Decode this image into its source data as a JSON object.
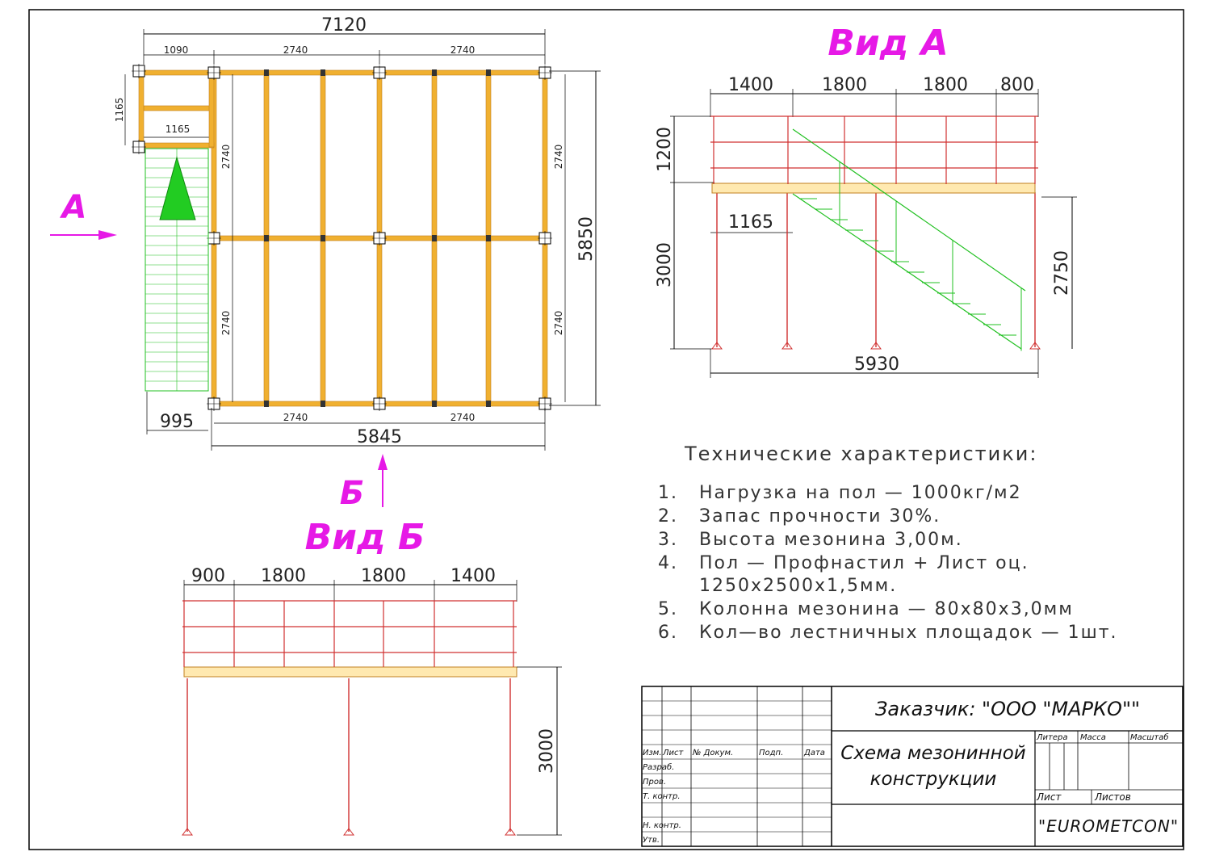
{
  "colors": {
    "frame": "#000000",
    "beam": "#f0b030",
    "beam_edge": "#c08020",
    "column": "#d03030",
    "stair": "#20c020",
    "accent": "#e619e6",
    "dim_line": "#000000"
  },
  "plan": {
    "dims_top": {
      "total": "7120",
      "d1": "1090",
      "d2": "2740",
      "d3": "2740"
    },
    "dims_left": {
      "d1": "1165",
      "inner": "1165"
    },
    "dims_inner": {
      "l1": "2740",
      "l2": "2740",
      "r1": "2740",
      "r2": "2740"
    },
    "dims_right": {
      "total": "5850"
    },
    "dims_bottom": {
      "b1": "2740",
      "b2": "2740",
      "total": "5845",
      "stair": "995"
    },
    "arrow_a": "A",
    "arrow_b": "Б"
  },
  "view_a": {
    "title": "Вид А",
    "dims_top": [
      "1400",
      "1800",
      "1800",
      "800"
    ],
    "rail_height": "1200",
    "height": "3000",
    "stair_offset": "1165",
    "stair_height": "2750",
    "width": "5930"
  },
  "view_b": {
    "title": "Вид Б",
    "dims_top": [
      "900",
      "1800",
      "1800",
      "1400"
    ],
    "height": "3000"
  },
  "specs": {
    "title": "Технические характеристики:",
    "items": [
      {
        "num": "1.",
        "text": "Нагрузка на пол — 1000кг/м2"
      },
      {
        "num": "2.",
        "text": "Запас прочности 30%."
      },
      {
        "num": "3.",
        "text": "Высота мезонина 3,00м."
      },
      {
        "num": "4.",
        "text": "Пол — Профнастил + Лист оц."
      },
      {
        "num": "",
        "text": "1250х2500х1,5мм."
      },
      {
        "num": "5.",
        "text": "Колонна мезонина — 80х80х3,0мм"
      },
      {
        "num": "6.",
        "text": "Кол—во лестничных площадок — 1шт."
      }
    ]
  },
  "title_block": {
    "customer": "Заказчик: \"ООО \"МАРКО\"\"",
    "drawing_line1": "Схема мезонинной",
    "drawing_line2": "конструкции",
    "col_izm": "Изм.",
    "col_list": "Лист",
    "col_doc": "№ Докум.",
    "col_sign": "Подп.",
    "col_date": "Дата",
    "row_razrab": "Разраб.",
    "row_prov": "Пров.",
    "row_tkontr": "Т. контр.",
    "row_nkontr": "Н. контр.",
    "row_utv": "Утв.",
    "litera": "Литера",
    "massa": "Масса",
    "masshtab": "Масштаб",
    "list": "Лист",
    "listov": "Листов",
    "company": "\"EUROMETCON\""
  }
}
